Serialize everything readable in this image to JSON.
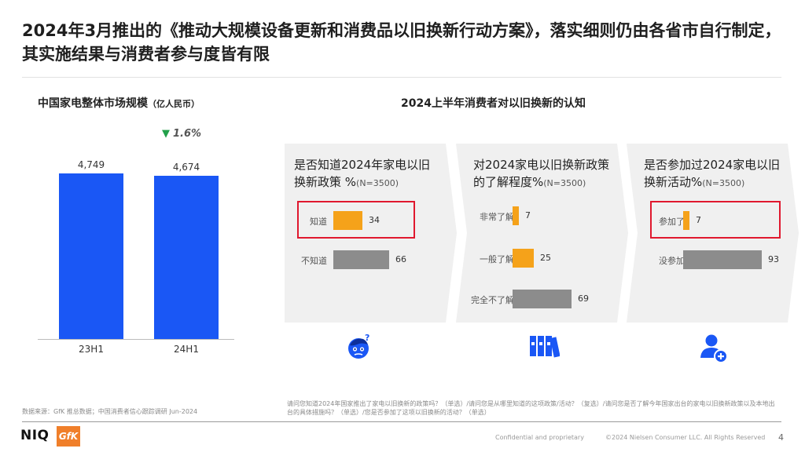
{
  "title": "2024年3月推出的《推动大规模设备更新和消费品以旧换新行动方案》，落实细则仍由各省市自行制定，其实施结果与消费者参与度皆有限",
  "left_chart": {
    "title": "中国家电整体市场规模",
    "unit": "（亿人民币）",
    "change_marker": "▼",
    "change": "1.6%",
    "change_color": "#22a04a",
    "bar_color": "#1a57f5",
    "chart_data": {
      "type": "bar",
      "categories": [
        "23H1",
        "24H1"
      ],
      "values": [
        4749,
        4674
      ],
      "value_labels": [
        "4,749",
        "4,674"
      ]
    }
  },
  "right_section": {
    "title": "2024上半年消费者对以旧换新的认知",
    "colors": {
      "orange": "#f5a21a",
      "gray": "#8c8c8c",
      "highlight": "#e0182e"
    },
    "panels": [
      {
        "head": "是否知道2024年家电以旧换新政策 %",
        "n": "(N=3500)",
        "rows": [
          {
            "label": "知道",
            "value": 34,
            "highlight": true
          },
          {
            "label": "不知道",
            "value": 66
          }
        ],
        "icon": "thinking-face-icon"
      },
      {
        "head": "对2024家电以旧换新政策的了解程度%",
        "n": "(N=3500)",
        "rows": [
          {
            "label": "非常了解",
            "value": 7
          },
          {
            "label": "一般了解",
            "value": 25
          },
          {
            "label": "完全不了解",
            "value": 69
          }
        ],
        "icon": "binders-icon"
      },
      {
        "head": "是否参加过2024家电以旧换新活动%",
        "n": "(N=3500)",
        "rows": [
          {
            "label": "参加了",
            "value": 7,
            "highlight": true
          },
          {
            "label": "没参加",
            "value": 93
          }
        ],
        "icon": "add-user-icon"
      }
    ]
  },
  "footer": {
    "source_left": "数据来源：GfK 推总数据；中国消费者信心跟踪调研 Jun-2024",
    "source_right": "请问您知道2024年国家推出了家电以旧换新的政策吗？（单选）/请问您是从哪里知道的这项政策/活动？（复选）/请问您是否了解今年国家出台的家电以旧换新政策以及本地出台的具体措施吗？（单选）/您是否参加了这项以旧换新的活动？（单选）",
    "logo_niq": "NIQ",
    "logo_gfk": "GfK",
    "confidential": "Confidential and proprietary",
    "copyright": "©2024 Nielsen Consumer LLC. All Rights Reserved",
    "page": "4"
  }
}
